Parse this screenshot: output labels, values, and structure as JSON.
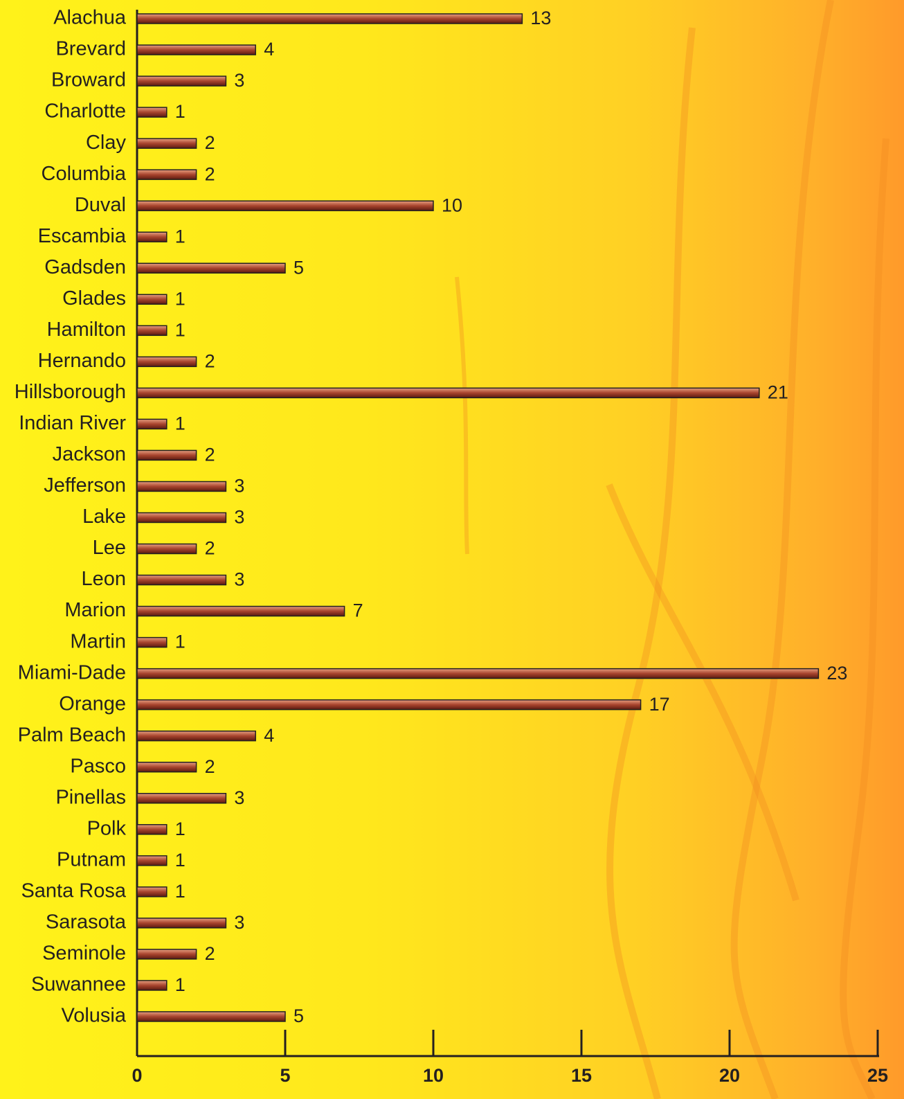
{
  "chart_data": {
    "type": "bar",
    "orientation": "horizontal",
    "categories": [
      "Alachua",
      "Brevard",
      "Broward",
      "Charlotte",
      "Clay",
      "Columbia",
      "Duval",
      "Escambia",
      "Gadsden",
      "Glades",
      "Hamilton",
      "Hernando",
      "Hillsborough",
      "Indian River",
      "Jackson",
      "Jefferson",
      "Lake",
      "Lee",
      "Leon",
      "Marion",
      "Martin",
      "Miami-Dade",
      "Orange",
      "Palm Beach",
      "Pasco",
      "Pinellas",
      "Polk",
      "Putnam",
      "Santa Rosa",
      "Sarasota",
      "Seminole",
      "Suwannee",
      "Volusia"
    ],
    "values": [
      13,
      4,
      3,
      1,
      2,
      2,
      10,
      1,
      5,
      1,
      1,
      2,
      21,
      1,
      2,
      3,
      3,
      2,
      3,
      7,
      1,
      23,
      17,
      4,
      2,
      3,
      1,
      1,
      1,
      3,
      2,
      1,
      5
    ],
    "color": "#a8442e",
    "xlim": [
      0,
      25
    ],
    "xticks": [
      0,
      5,
      10,
      15,
      20,
      25
    ]
  }
}
